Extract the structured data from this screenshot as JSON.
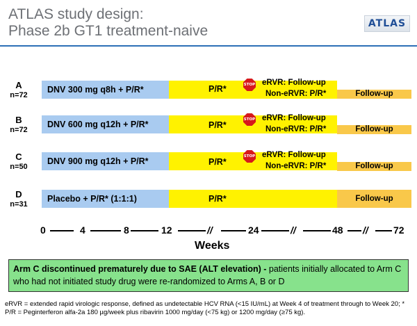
{
  "header": {
    "title_line1": "ATLAS study design:",
    "title_line2": "Phase 2b GT1 treatment-naive",
    "logo_text": "ATLAS"
  },
  "arms": [
    {
      "letter": "A",
      "n": "n=72",
      "regimen": "DNV 300 mg q8h + P/R*",
      "pr": "P/R*",
      "stop": "STOP",
      "ervr": "eRVR: Follow-up",
      "non_ervr": "Non-eRVR: P/R*",
      "followup": "Follow-up"
    },
    {
      "letter": "B",
      "n": "n=72",
      "regimen": "DNV 600 mg q12h + P/R*",
      "pr": "P/R*",
      "stop": "STOP",
      "ervr": "eRVR: Follow-up",
      "non_ervr": "Non-eRVR: P/R*",
      "followup": "Follow-up"
    },
    {
      "letter": "C",
      "n": "n=50",
      "regimen": "DNV 900 mg q12h + P/R*",
      "pr": "P/R*",
      "stop": "STOP",
      "ervr": "eRVR: Follow-up",
      "non_ervr": "Non-eRVR: P/R*",
      "followup": "Follow-up"
    },
    {
      "letter": "D",
      "n": "n=31",
      "regimen": "Placebo + P/R* (1:1:1)",
      "pr": "P/R*",
      "followup": "Follow-up"
    }
  ],
  "axis": {
    "ticks": [
      "0",
      "4",
      "8",
      "12",
      "24",
      "48",
      "72"
    ],
    "break_symbol": "//",
    "label": "Weeks"
  },
  "note": {
    "bold": "Arm C discontinued prematurely due to SAE (ALT elevation) -",
    "text": " patients initially allocated to Arm C who had not initiated study drug were re-randomized to Arms A, B or D"
  },
  "footnote": "eRVR = extended rapid virologic response, defined as undetectable HCV RNA (<15 IU/mL) at Week 4 of treatment through to Week 20; * P/R = Peginterferon alfa-2a 180 µg/week plus ribavirin 1000 mg/day (<75 kg) or 1200 mg/day (≥75 kg).",
  "colors": {
    "dnv_phase": "#a9cbf0",
    "pr_phase": "#fff200",
    "followup_phase": "#f9c84a",
    "note_bg": "#87e28c",
    "stop_sign": "#d7191c",
    "rule": "#2c6fb6"
  }
}
